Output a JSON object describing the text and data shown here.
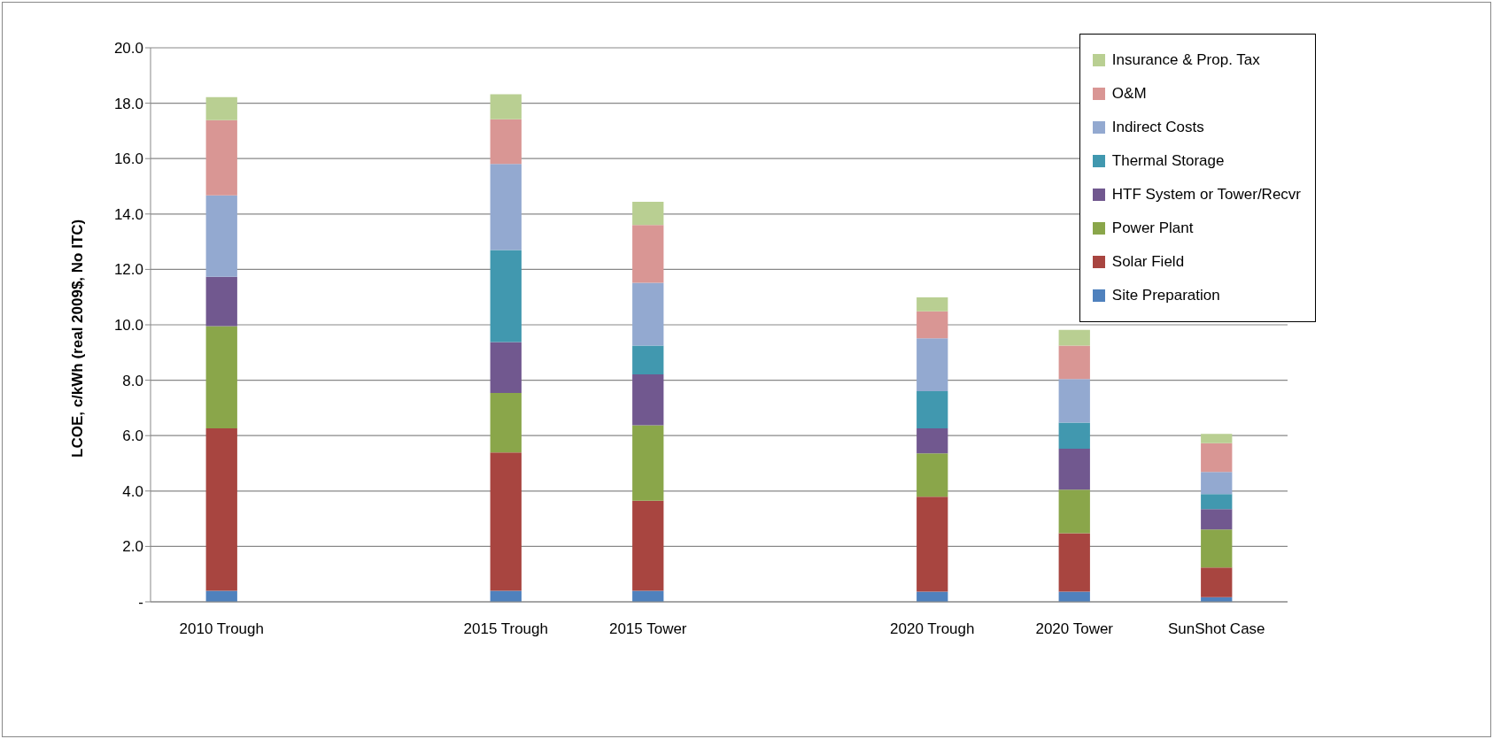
{
  "chart_data": {
    "type": "bar",
    "stacked": true,
    "ylabel": "LCOE, c/kWh (real 2009$, No ITC)",
    "categories": [
      "2010 Trough",
      null,
      "2015 Trough",
      "2015 Tower",
      null,
      "2020 Trough",
      "2020 Tower",
      "SunShot Case"
    ],
    "series": [
      {
        "name": "Site Preparation",
        "color": "#4f81bd",
        "values": [
          0.4,
          null,
          0.4,
          0.4,
          null,
          0.37,
          0.37,
          0.17
        ]
      },
      {
        "name": "Solar Field",
        "color": "#a84540",
        "values": [
          5.86,
          null,
          4.99,
          3.25,
          null,
          3.42,
          2.11,
          1.07
        ]
      },
      {
        "name": "Power Plant",
        "color": "#8aa64a",
        "values": [
          3.69,
          null,
          2.15,
          2.72,
          null,
          1.57,
          1.57,
          1.37
        ]
      },
      {
        "name": "HTF System or Tower/Recvr",
        "color": "#71588f",
        "values": [
          1.78,
          null,
          1.84,
          1.84,
          null,
          0.9,
          1.48,
          0.74
        ]
      },
      {
        "name": "Thermal Storage",
        "color": "#4198af",
        "values": [
          0,
          null,
          3.32,
          1.04,
          null,
          1.34,
          0.94,
          0.54
        ]
      },
      {
        "name": "Indirect Costs",
        "color": "#93a9d0",
        "values": [
          2.94,
          null,
          3.11,
          2.27,
          null,
          1.91,
          1.57,
          0.8
        ]
      },
      {
        "name": "O&M",
        "color": "#d99694",
        "values": [
          2.72,
          null,
          1.61,
          2.08,
          null,
          0.98,
          1.21,
          1.04
        ]
      },
      {
        "name": "Insurance & Prop. Tax",
        "color": "#b9cf92",
        "values": [
          0.83,
          null,
          0.9,
          0.84,
          null,
          0.5,
          0.57,
          0.33
        ]
      }
    ],
    "ylim": [
      0,
      20
    ],
    "yticks": [
      {
        "value": 0,
        "label": "-"
      },
      {
        "value": 2,
        "label": "2.0"
      },
      {
        "value": 4,
        "label": "4.0"
      },
      {
        "value": 6,
        "label": "6.0"
      },
      {
        "value": 8,
        "label": "8.0"
      },
      {
        "value": 10,
        "label": "10.0"
      },
      {
        "value": 12,
        "label": "12.0"
      },
      {
        "value": 14,
        "label": "14.0"
      },
      {
        "value": 16,
        "label": "16.0"
      },
      {
        "value": 18,
        "label": "18.0"
      },
      {
        "value": 20,
        "label": "20.0"
      }
    ],
    "grid": "y",
    "legend": "top right"
  }
}
